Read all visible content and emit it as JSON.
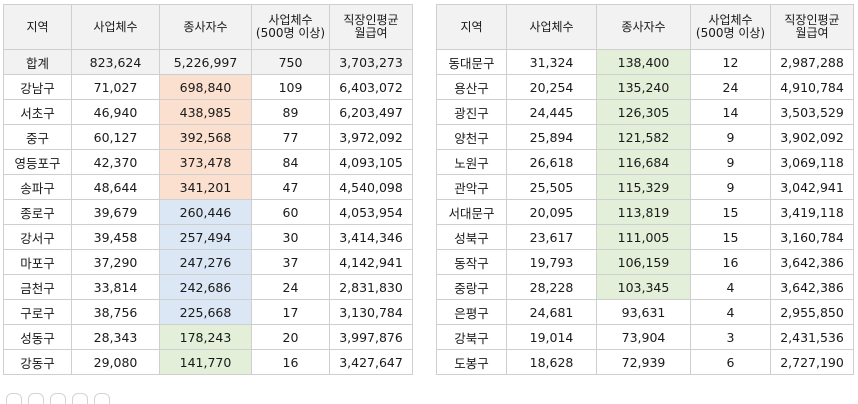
{
  "left_table": {
    "headers": [
      "지역",
      "사업체수",
      "종사자수",
      "사업체수\n(500명 이상)",
      "직장인평균\n월급여"
    ],
    "total_row": [
      "합계",
      "823,624",
      "5,226,997",
      "750",
      "3,703,273"
    ],
    "rows": [
      [
        "강남구",
        "71,027",
        "698,840",
        "109",
        "6,403,072"
      ],
      [
        "서초구",
        "46,940",
        "438,985",
        "89",
        "6,203,497"
      ],
      [
        "중구",
        "60,127",
        "392,568",
        "77",
        "3,972,092"
      ],
      [
        "영등포구",
        "42,370",
        "373,478",
        "84",
        "4,093,105"
      ],
      [
        "송파구",
        "48,644",
        "341,201",
        "47",
        "4,540,098"
      ],
      [
        "종로구",
        "39,679",
        "260,446",
        "60",
        "4,053,954"
      ],
      [
        "강서구",
        "39,458",
        "257,494",
        "30",
        "3,414,346"
      ],
      [
        "마포구",
        "37,290",
        "247,276",
        "37",
        "4,142,941"
      ],
      [
        "금천구",
        "33,814",
        "242,686",
        "24",
        "2,831,830"
      ],
      [
        "구로구",
        "38,756",
        "225,668",
        "17",
        "3,130,784"
      ],
      [
        "성동구",
        "28,343",
        "178,243",
        "20",
        "3,997,876"
      ],
      [
        "강동구",
        "29,080",
        "141,770",
        "16",
        "3,427,647"
      ]
    ],
    "highlight": [
      "orange",
      "orange",
      "orange",
      "orange",
      "orange",
      "blue",
      "blue",
      "blue",
      "blue",
      "blue",
      "green",
      "green"
    ]
  },
  "right_table": {
    "headers": [
      "지역",
      "사업체수",
      "종사자수",
      "사업체수\n(500명 이상)",
      "직장인평균\n월급여"
    ],
    "rows": [
      [
        "동대문구",
        "31,324",
        "138,400",
        "12",
        "2,987,288"
      ],
      [
        "용산구",
        "20,254",
        "135,240",
        "24",
        "4,910,784"
      ],
      [
        "광진구",
        "24,445",
        "126,305",
        "14",
        "3,503,529"
      ],
      [
        "양천구",
        "25,894",
        "121,582",
        "9",
        "3,902,092"
      ],
      [
        "노원구",
        "26,618",
        "116,684",
        "9",
        "3,069,118"
      ],
      [
        "관악구",
        "25,505",
        "115,329",
        "9",
        "3,042,941"
      ],
      [
        "서대문구",
        "20,095",
        "113,819",
        "15",
        "3,419,118"
      ],
      [
        "성북구",
        "23,617",
        "111,005",
        "15",
        "3,160,784"
      ],
      [
        "동작구",
        "19,793",
        "106,159",
        "16",
        "3,642,386"
      ],
      [
        "중랑구",
        "28,228",
        "103,345",
        "4",
        "3,642,386"
      ],
      [
        "은평구",
        "24,681",
        "93,631",
        "4",
        "2,955,850"
      ],
      [
        "강북구",
        "19,014",
        "73,904",
        "3",
        "2,431,536"
      ],
      [
        "도봉구",
        "18,628",
        "72,939",
        "6",
        "2,727,190"
      ]
    ],
    "highlight": [
      "green",
      "green",
      "green",
      "green",
      "green",
      "green",
      "green",
      "green",
      "green",
      "green",
      "none",
      "none",
      "none"
    ]
  },
  "colors": {
    "orange": "#fce0cf",
    "blue": "#dbe7f5",
    "green": "#e3efd8",
    "header": "#f2f2f2",
    "border": "#cfcfcf"
  }
}
